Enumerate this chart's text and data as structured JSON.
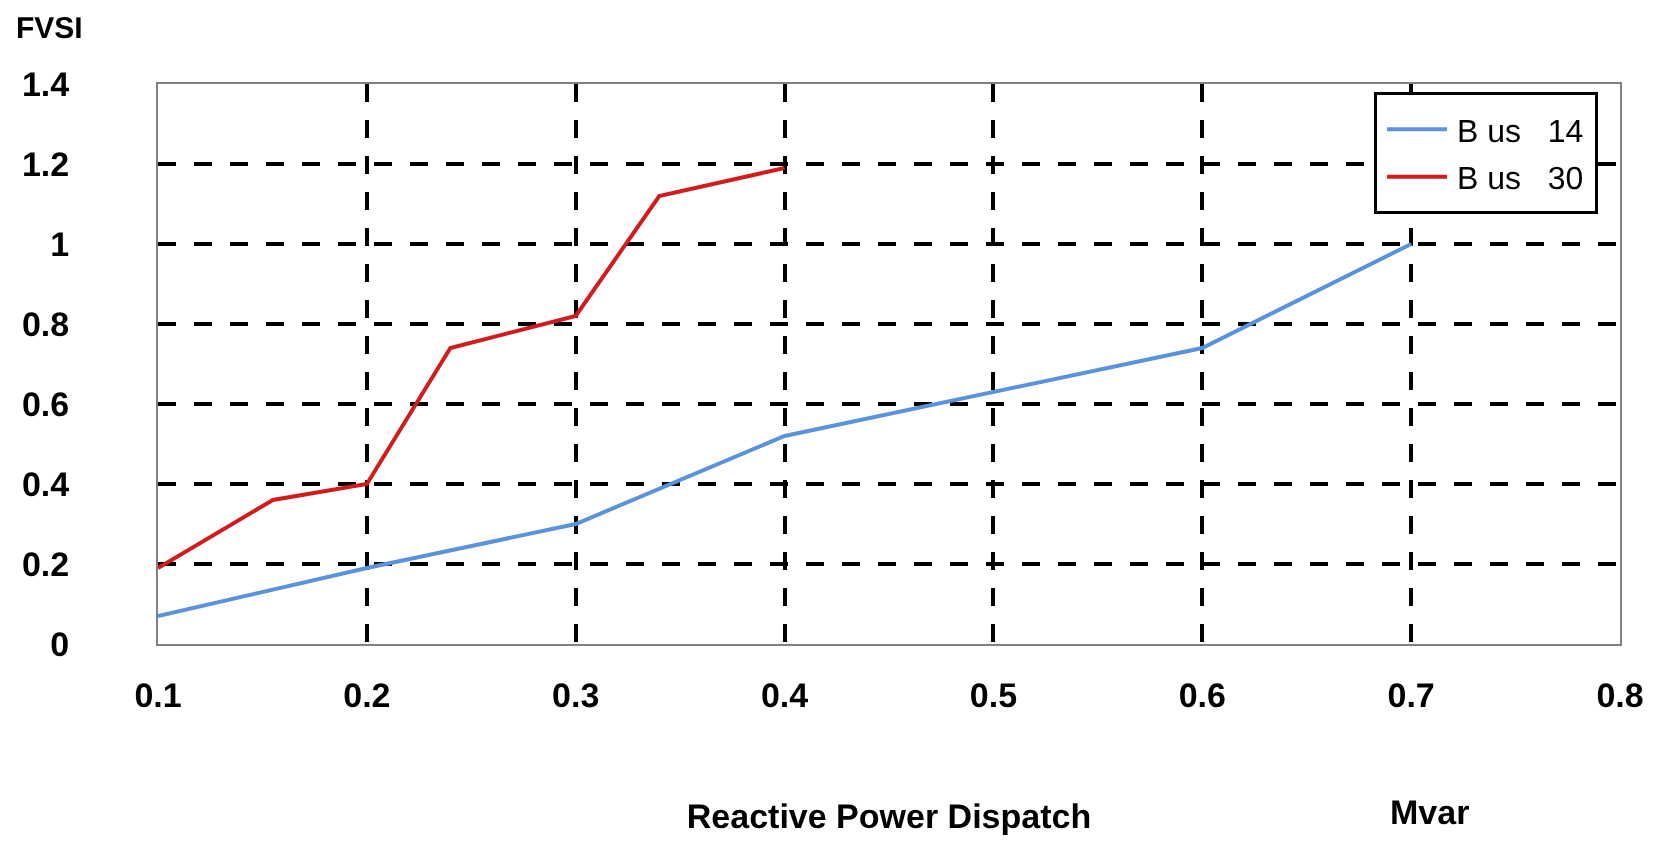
{
  "chart_data": {
    "type": "line",
    "xlabel": "Reactive Power Dispatch",
    "ylabel": "FVSI",
    "annotations": [
      "Mvar"
    ],
    "xlim": [
      0.1,
      0.8
    ],
    "xticks": [
      0.1,
      0.2,
      0.3,
      0.4,
      0.5,
      0.6,
      0.7,
      0.8
    ],
    "ylim": [
      0,
      1.4
    ],
    "yticks": [
      0,
      0.2,
      0.4,
      0.6,
      0.8,
      1,
      1.2,
      1.4
    ],
    "grid": true,
    "legend": "top right",
    "marker": "none",
    "line_style": "solid",
    "series": [
      {
        "name": "B us   14",
        "color": "#5b93db",
        "x": [
          0.1,
          0.2,
          0.3,
          0.4,
          0.6,
          0.7
        ],
        "values": [
          0.07,
          0.19,
          0.3,
          0.52,
          0.74,
          1.0
        ]
      },
      {
        "name": "B us   30",
        "color": "#d01c1c",
        "x": [
          0.1,
          0.155,
          0.2,
          0.24,
          0.3,
          0.34,
          0.4
        ],
        "values": [
          0.19,
          0.36,
          0.4,
          0.74,
          0.82,
          1.12,
          1.19
        ]
      }
    ]
  }
}
